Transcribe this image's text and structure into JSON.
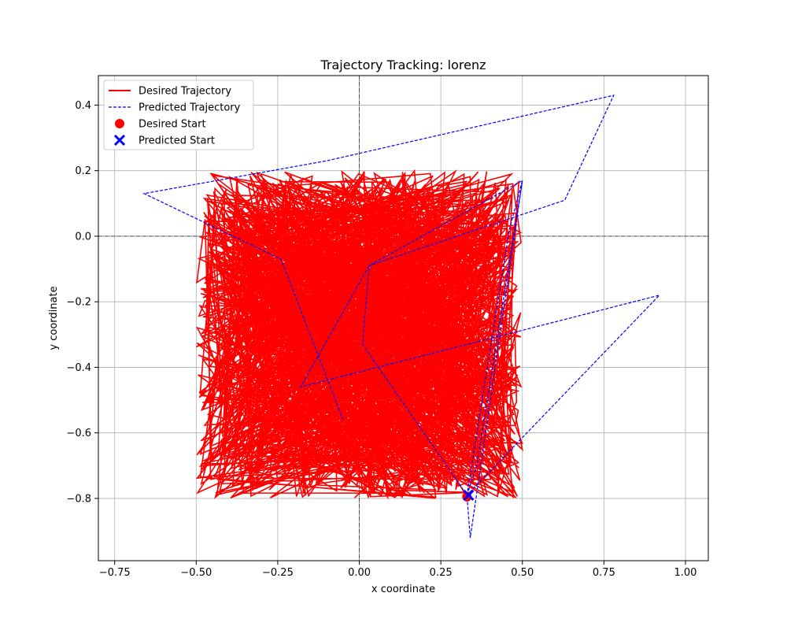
{
  "chart_data": {
    "type": "line",
    "title": "Trajectory Tracking: lorenz",
    "xlabel": "x coordinate",
    "ylabel": "y coordinate",
    "xlim": [
      -0.8,
      1.07
    ],
    "ylim": [
      -0.99,
      0.49
    ],
    "xticks": [
      -0.75,
      -0.5,
      -0.25,
      0.0,
      0.25,
      0.5,
      0.75,
      1.0
    ],
    "xtick_labels": [
      "−0.75",
      "−0.50",
      "−0.25",
      "0.00",
      "0.25",
      "0.50",
      "0.75",
      "1.00"
    ],
    "yticks": [
      -0.8,
      -0.6,
      -0.4,
      -0.2,
      0.0,
      0.2,
      0.4
    ],
    "ytick_labels": [
      "−0.8",
      "−0.6",
      "−0.4",
      "−0.2",
      "0.0",
      "0.2",
      "0.4"
    ],
    "grid": true,
    "legend_position": "top-left",
    "zero_lines": true,
    "desired": {
      "name": "Desired Trajectory",
      "color": "#ff0000",
      "x_range": [
        -0.5,
        0.5
      ],
      "y_range": [
        -0.8,
        0.2
      ],
      "approx_points": 1600
    },
    "predicted": {
      "name": "Predicted Trajectory",
      "color": "#0000ff",
      "x": [
        -0.05,
        -0.24,
        -0.66,
        -0.1,
        0.78,
        0.63,
        0.03,
        0.01,
        0.33,
        0.36,
        0.5,
        0.34,
        0.33,
        0.92,
        -0.18,
        0.03,
        0.5,
        0.46,
        0.33
      ],
      "y": [
        -0.56,
        -0.07,
        0.13,
        0.23,
        0.43,
        0.11,
        -0.09,
        -0.33,
        -0.79,
        -0.7,
        0.17,
        -0.92,
        -0.79,
        -0.18,
        -0.46,
        -0.09,
        0.17,
        0.02,
        -0.79
      ]
    },
    "desired_start": {
      "name": "Desired Start",
      "x": 0.33,
      "y": -0.795,
      "color": "#ff0000"
    },
    "predicted_start": {
      "name": "Predicted Start",
      "x": 0.335,
      "y": -0.79,
      "color": "#0000ff"
    }
  }
}
